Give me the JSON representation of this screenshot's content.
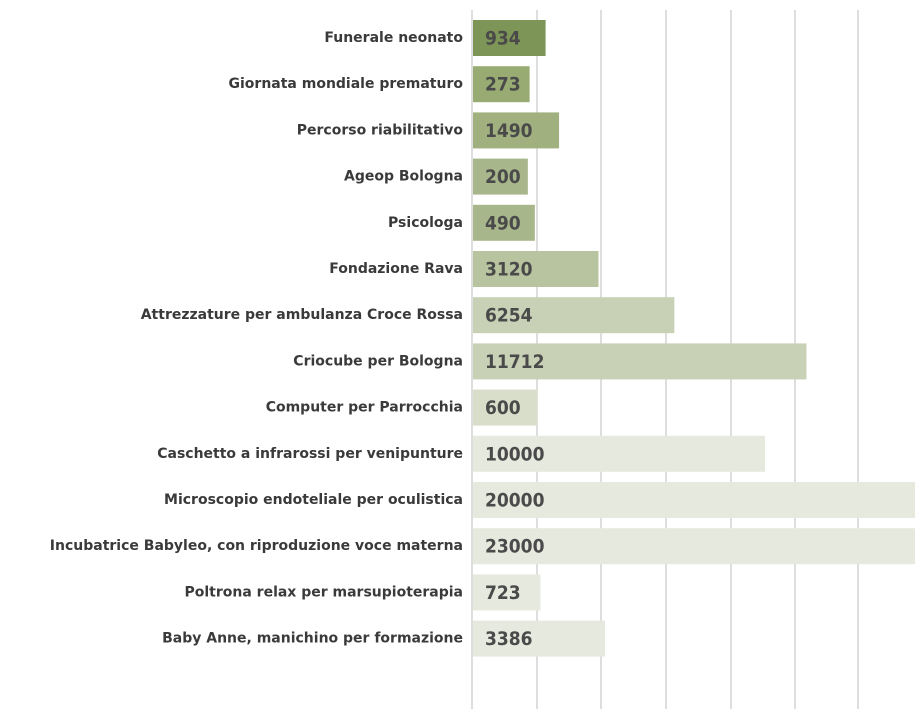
{
  "chart_data": {
    "type": "bar",
    "categories": [
      "Funerale neonato",
      "Giornata mondiale prematuro",
      "Percorso riabilitativo",
      "Ageop Bologna",
      "Psicologa",
      "Fondazione Rava",
      "Attrezzature per ambulanza Croce Rossa",
      "Criocube  per Bologna",
      "Computer per Parrocchia",
      "Caschetto a infrarossi per venipunture",
      "Microscopio endoteliale per oculistica",
      "Incubatrice Babyleo, con riproduzione voce materna",
      "Poltrona relax per marsupioterapia",
      "Baby Anne, manichino per formazione"
    ],
    "values": [
      934,
      273,
      1490,
      200,
      490,
      3120,
      6254,
      11712,
      600,
      10000,
      20000,
      23000,
      723,
      3386
    ],
    "colors": [
      "#7d9556",
      "#97ab73",
      "#a0b17f",
      "#a8b78b",
      "#a8b78b",
      "#b8c49f",
      "#c8d1b5",
      "#c8d1b5",
      "#d8dec9",
      "#e6e9de",
      "#e6e9de",
      "#e6e9de",
      "#e6e9de",
      "#e6e9de"
    ]
  }
}
